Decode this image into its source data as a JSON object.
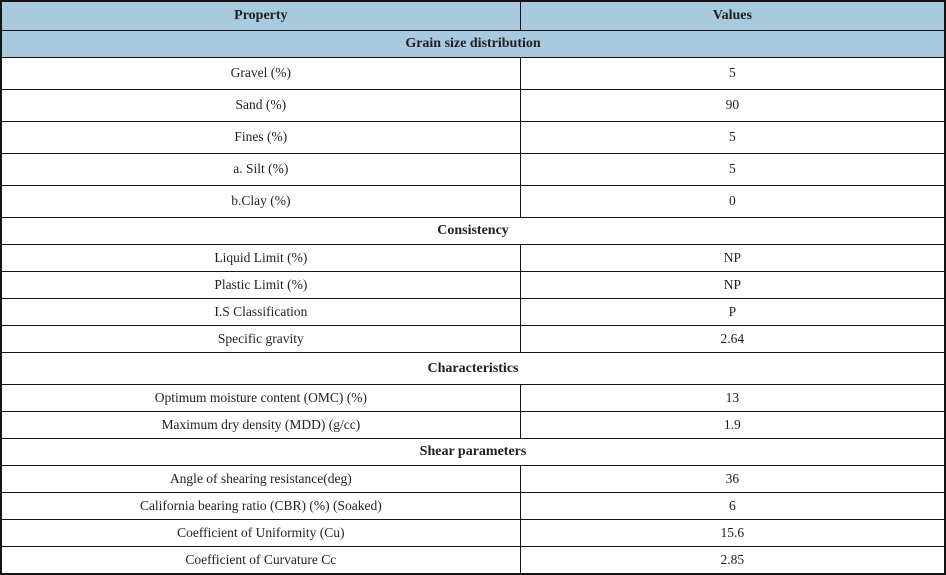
{
  "colors": {
    "header_bg": "#a9cade",
    "border": "#141414",
    "text": "#1f1f1f"
  },
  "table": {
    "columns": [
      "Property",
      "Values"
    ],
    "sections": [
      {
        "header": "Grain size distribution",
        "highlighted": true,
        "rows": [
          {
            "property": "Gravel (%)",
            "value": "5"
          },
          {
            "property": "Sand (%)",
            "value": "90"
          },
          {
            "property": "Fines (%)",
            "value": "5"
          },
          {
            "property": "a. Silt (%)",
            "value": "5"
          },
          {
            "property": "b.Clay (%)",
            "value": "0"
          }
        ]
      },
      {
        "header": "Consistency",
        "highlighted": false,
        "rows": [
          {
            "property": "Liquid Limit (%)",
            "value": "NP"
          },
          {
            "property": "Plastic Limit (%)",
            "value": "NP"
          },
          {
            "property": "I.S Classification",
            "value": "P"
          },
          {
            "property": "Specific gravity",
            "value": "2.64"
          }
        ]
      },
      {
        "header": "Characteristics",
        "highlighted": false,
        "rows": [
          {
            "property": "Optimum moisture content (OMC) (%)",
            "value": "13"
          },
          {
            "property": "Maximum dry density (MDD) (g/cc)",
            "value": "1.9"
          }
        ]
      },
      {
        "header": "Shear parameters",
        "highlighted": false,
        "rows": [
          {
            "property": "Angle of shearing resistance(deg)",
            "value": "36"
          },
          {
            "property": "California bearing ratio (CBR) (%) (Soaked)",
            "value": "6"
          },
          {
            "property": "Coefficient of Uniformity (Cu)",
            "value": "15.6"
          },
          {
            "property": "Coefficient of Curvature Cc",
            "value": "2.85"
          }
        ]
      }
    ]
  }
}
